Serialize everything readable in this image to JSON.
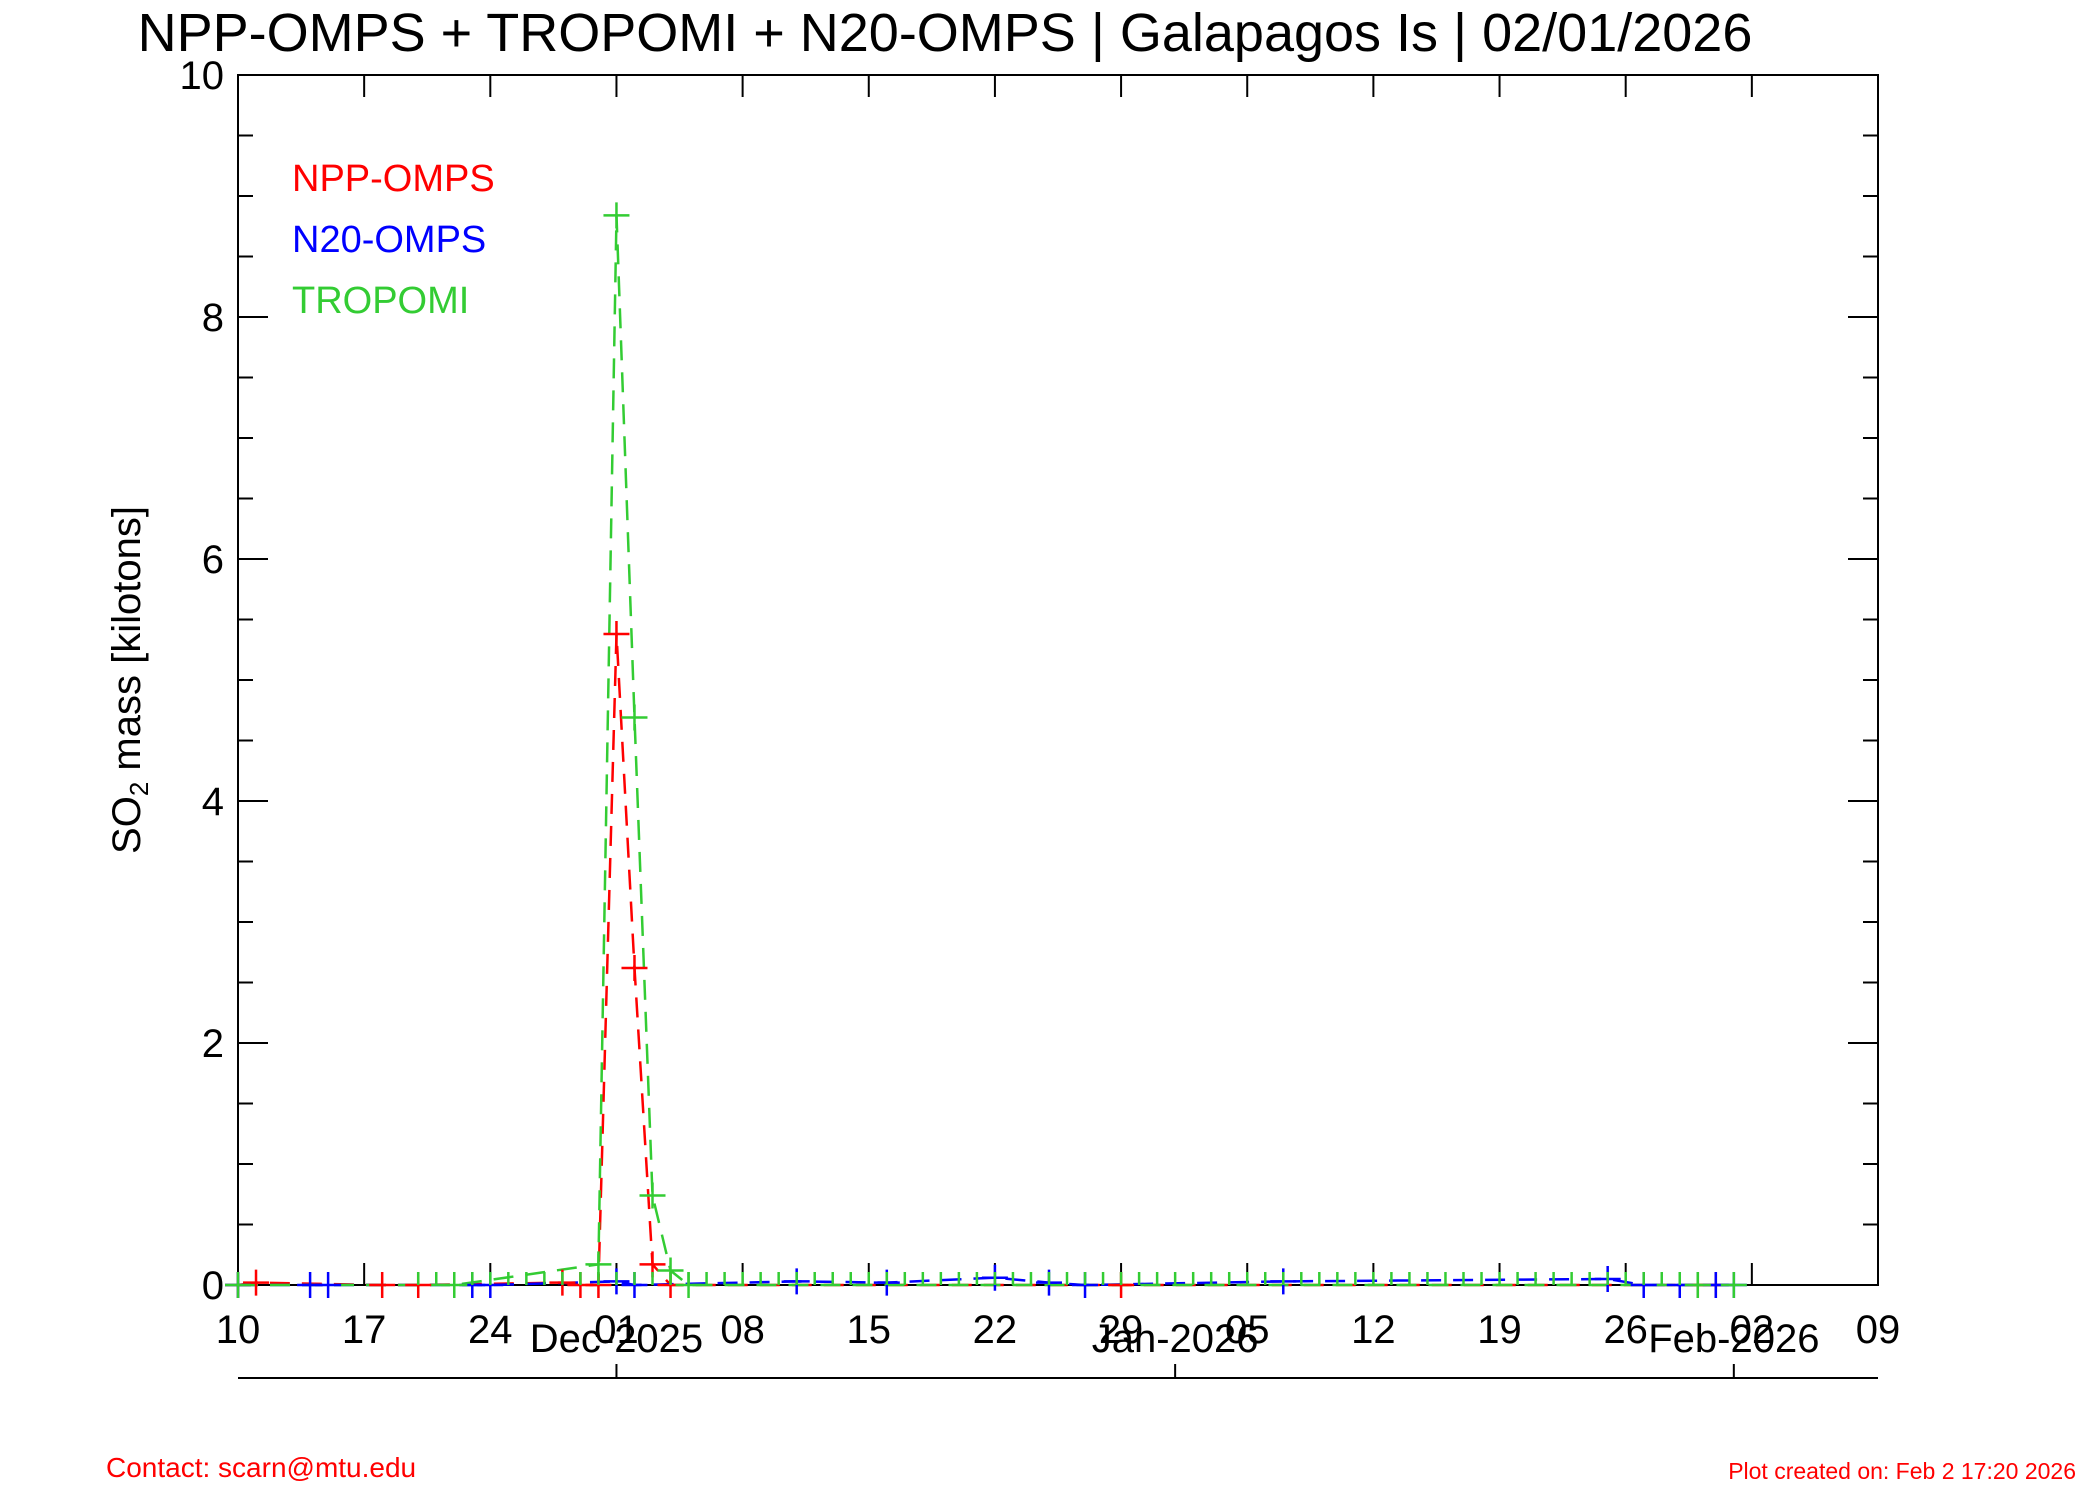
{
  "chart_data": {
    "type": "line",
    "title": "NPP-OMPS + TROPOMI + N20-OMPS | Galapagos Is | 02/01/2026",
    "ylabel_main": "SO",
    "ylabel_sub": "2",
    "ylabel_rest": " mass [kilotons]",
    "xlabel": "",
    "ylim": [
      0,
      10
    ],
    "yticks": [
      "0",
      "2",
      "4",
      "6",
      "8",
      "10"
    ],
    "xlim": [
      "2025-11-10",
      "2026-02-09"
    ],
    "xtick_labels": [
      {
        "date": "2025-11-10",
        "label": "10"
      },
      {
        "date": "2025-11-17",
        "label": "17"
      },
      {
        "date": "2025-11-24",
        "label": "24"
      },
      {
        "date": "2025-12-01",
        "label": "01"
      },
      {
        "date": "2025-12-08",
        "label": "08"
      },
      {
        "date": "2025-12-15",
        "label": "15"
      },
      {
        "date": "2025-12-22",
        "label": "22"
      },
      {
        "date": "2025-12-29",
        "label": "29"
      },
      {
        "date": "2026-01-05",
        "label": "05"
      },
      {
        "date": "2026-01-12",
        "label": "12"
      },
      {
        "date": "2026-01-19",
        "label": "19"
      },
      {
        "date": "2026-01-26",
        "label": "26"
      },
      {
        "date": "2026-02-02",
        "label": "02"
      },
      {
        "date": "2026-02-09",
        "label": "09"
      }
    ],
    "month_labels": [
      {
        "date": "2025-12-01",
        "label": "Dec-2025"
      },
      {
        "date": "2026-01-01",
        "label": "Jan-2026"
      },
      {
        "date": "2026-02-01",
        "label": "Feb-2026"
      }
    ],
    "legend_position": "top-left",
    "series": [
      {
        "name": "NPP-OMPS",
        "color": "#ff0000",
        "points": [
          {
            "x": "2025-11-10",
            "y": 0.0
          },
          {
            "x": "2025-11-11",
            "y": 0.02
          },
          {
            "x": "2025-11-18",
            "y": 0.0
          },
          {
            "x": "2025-11-20",
            "y": 0.0
          },
          {
            "x": "2025-11-28",
            "y": 0.02
          },
          {
            "x": "2025-11-29",
            "y": 0.0
          },
          {
            "x": "2025-11-30",
            "y": 0.0
          },
          {
            "x": "2025-12-01",
            "y": 5.38
          },
          {
            "x": "2025-12-02",
            "y": 2.62
          },
          {
            "x": "2025-12-03",
            "y": 0.17
          },
          {
            "x": "2025-12-04",
            "y": 0.0
          },
          {
            "x": "2025-12-29",
            "y": 0.0
          },
          {
            "x": "2026-01-30",
            "y": 0.0
          },
          {
            "x": "2026-01-31",
            "y": 0.0
          }
        ]
      },
      {
        "name": "N20-OMPS",
        "color": "#0000ff",
        "points": [
          {
            "x": "2025-11-10",
            "y": 0.0
          },
          {
            "x": "2025-11-14",
            "y": 0.0
          },
          {
            "x": "2025-11-15",
            "y": 0.0
          },
          {
            "x": "2025-11-23",
            "y": 0.0
          },
          {
            "x": "2025-11-24",
            "y": 0.0
          },
          {
            "x": "2025-12-01",
            "y": 0.03
          },
          {
            "x": "2025-12-02",
            "y": 0.0
          },
          {
            "x": "2025-12-11",
            "y": 0.03
          },
          {
            "x": "2025-12-16",
            "y": 0.02
          },
          {
            "x": "2025-12-22",
            "y": 0.06
          },
          {
            "x": "2025-12-25",
            "y": 0.02
          },
          {
            "x": "2025-12-27",
            "y": 0.0
          },
          {
            "x": "2026-01-07",
            "y": 0.03
          },
          {
            "x": "2026-01-25",
            "y": 0.05
          },
          {
            "x": "2026-01-27",
            "y": 0.0
          },
          {
            "x": "2026-01-29",
            "y": 0.0
          },
          {
            "x": "2026-01-31",
            "y": 0.0
          },
          {
            "x": "2026-02-01",
            "y": 0.0
          }
        ]
      },
      {
        "name": "TROPOMI",
        "color": "#33cc33",
        "points": [
          {
            "x": "2025-11-10",
            "y": 0.0
          },
          {
            "x": "2025-11-22",
            "y": 0.0
          },
          {
            "x": "2025-11-30",
            "y": 0.17
          },
          {
            "x": "2025-12-01",
            "y": 8.84
          },
          {
            "x": "2025-12-02",
            "y": 4.69
          },
          {
            "x": "2025-12-03",
            "y": 0.74
          },
          {
            "x": "2025-12-04",
            "y": 0.12
          },
          {
            "x": "2025-12-05",
            "y": 0.0
          },
          {
            "x": "2026-01-30",
            "y": 0.0
          },
          {
            "x": "2026-02-01",
            "y": 0.0
          }
        ],
        "daily_zero_ticks": {
          "start": "2025-11-20",
          "end": "2026-01-30"
        }
      }
    ]
  },
  "legend": [
    "NPP-OMPS",
    "N20-OMPS",
    "TROPOMI"
  ],
  "footer": {
    "contact": "Contact: scarn@mtu.edu",
    "created": "Plot created on: Feb  2 17:20 2026"
  }
}
